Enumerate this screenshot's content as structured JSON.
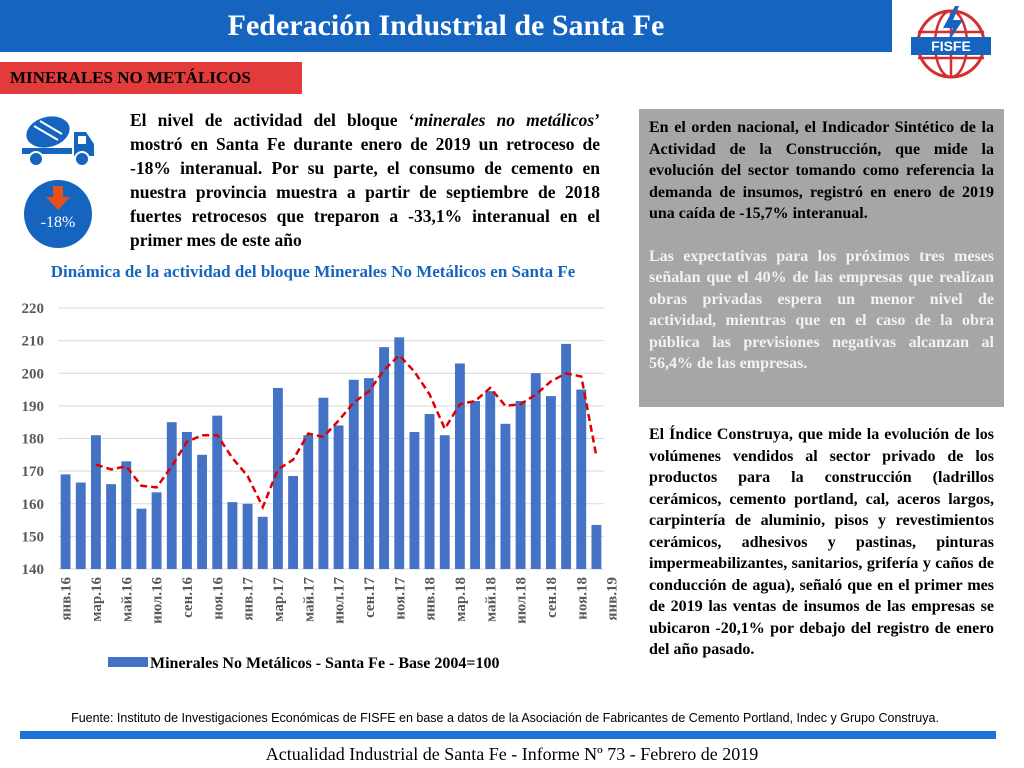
{
  "header": {
    "title": "Federación Industrial de Santa Fe"
  },
  "logo": {
    "text": "FISFE"
  },
  "section": {
    "tab_label": "MINERALES NO METÁLICOS"
  },
  "badge": {
    "value": "-18%"
  },
  "intro": {
    "part1": "El nivel de actividad del bloque ‘",
    "italic": "minerales no metálicos",
    "part2": "’ mostró en Santa Fe durante enero de 2019 un retroceso de -18% interanual. Por su parte, el consumo de cemento en nuestra provincia muestra a partir de septiembre de 2018 fuertes retrocesos que treparon a -33,1% interanual en el primer mes de este año"
  },
  "grey_box": {
    "p1": "En el orden nacional, el Indicador Sintético de la Actividad de la Construcción, que mide la evolución del sector tomando como referencia la demanda de insumos, registró en enero de 2019 una caída de -15,7% interanual.",
    "p2": "Las expectativas para los próximos tres meses señalan que el 40% de las empresas que realizan obras privadas espera un menor nivel de actividad, mientras que en el caso de la obra pública las previsiones negativas alcanzan al 56,4% de las empresas."
  },
  "right_text": "El Índice Construya, que mide la evolución de los volúmenes vendidos al sector privado de los productos para la construcción (ladrillos cerámicos, cemento portland, cal, aceros largos, carpintería de aluminio, pisos y revestimientos cerámicos, adhesivos y pastinas, pinturas impermeabilizantes, sanitarios, grifería y caños de conducción de agua), señaló que en el primer mes de 2019 las ventas de insumos de las empresas se ubicaron -20,1% por debajo del registro de enero del año pasado.",
  "source": "Fuente: Instituto de Investigaciones Económicas de FISFE en base a datos de la Asociación de Fabricantes de Cemento Portland, Indec y Grupo Construya.",
  "footer": "Actualidad Industrial de Santa Fe - Informe Nº 73 - Febrero de 2019",
  "colors": {
    "header_blue": "#1565c0",
    "bar_blue": "#4472c4",
    "trend_red": "#e00000",
    "tab_red": "#e23b3b",
    "grey_box": "#a6a6a6"
  },
  "chart_data": {
    "type": "bar",
    "title": "Dinámica de la actividad del bloque Minerales No Metálicos en Santa Fe",
    "ylim": [
      140,
      220
    ],
    "yticks": [
      140,
      150,
      160,
      170,
      180,
      190,
      200,
      210,
      220
    ],
    "grid": true,
    "legend": "bottom",
    "x_tick_labels": [
      "янв.16",
      "мар.16",
      "май.16",
      "июл.16",
      "сен.16",
      "ноя.16",
      "янв.17",
      "мар.17",
      "май.17",
      "июл.17",
      "сен.17",
      "ноя.17",
      "янв.18",
      "мар.18",
      "май.18",
      "июл.18",
      "сен.18",
      "ноя.18",
      "янв.19"
    ],
    "series": [
      {
        "name": "Minerales No Metálicos - Santa Fe - Base 2004=100",
        "type": "bar",
        "values": [
          169,
          166.5,
          181,
          166,
          173,
          158.5,
          163.5,
          185,
          182,
          175,
          187,
          160.5,
          160,
          156,
          195.5,
          168.5,
          181,
          192.5,
          184,
          198,
          198.5,
          208,
          211,
          182,
          187.5,
          181,
          203,
          191.5,
          194.5,
          184.5,
          191.5,
          200,
          193,
          209,
          195,
          153.5
        ]
      },
      {
        "name": "trend",
        "type": "line",
        "values": [
          null,
          null,
          172,
          170.5,
          171.5,
          165.5,
          165,
          171.5,
          179,
          181,
          181,
          174,
          168.5,
          159,
          170.5,
          173.5,
          181.5,
          180.5,
          185.5,
          191,
          194.5,
          201,
          205.5,
          200.5,
          193.5,
          183,
          190.5,
          191.5,
          195.5,
          190,
          190.5,
          193.5,
          197.5,
          200,
          199,
          174.5
        ]
      }
    ]
  }
}
